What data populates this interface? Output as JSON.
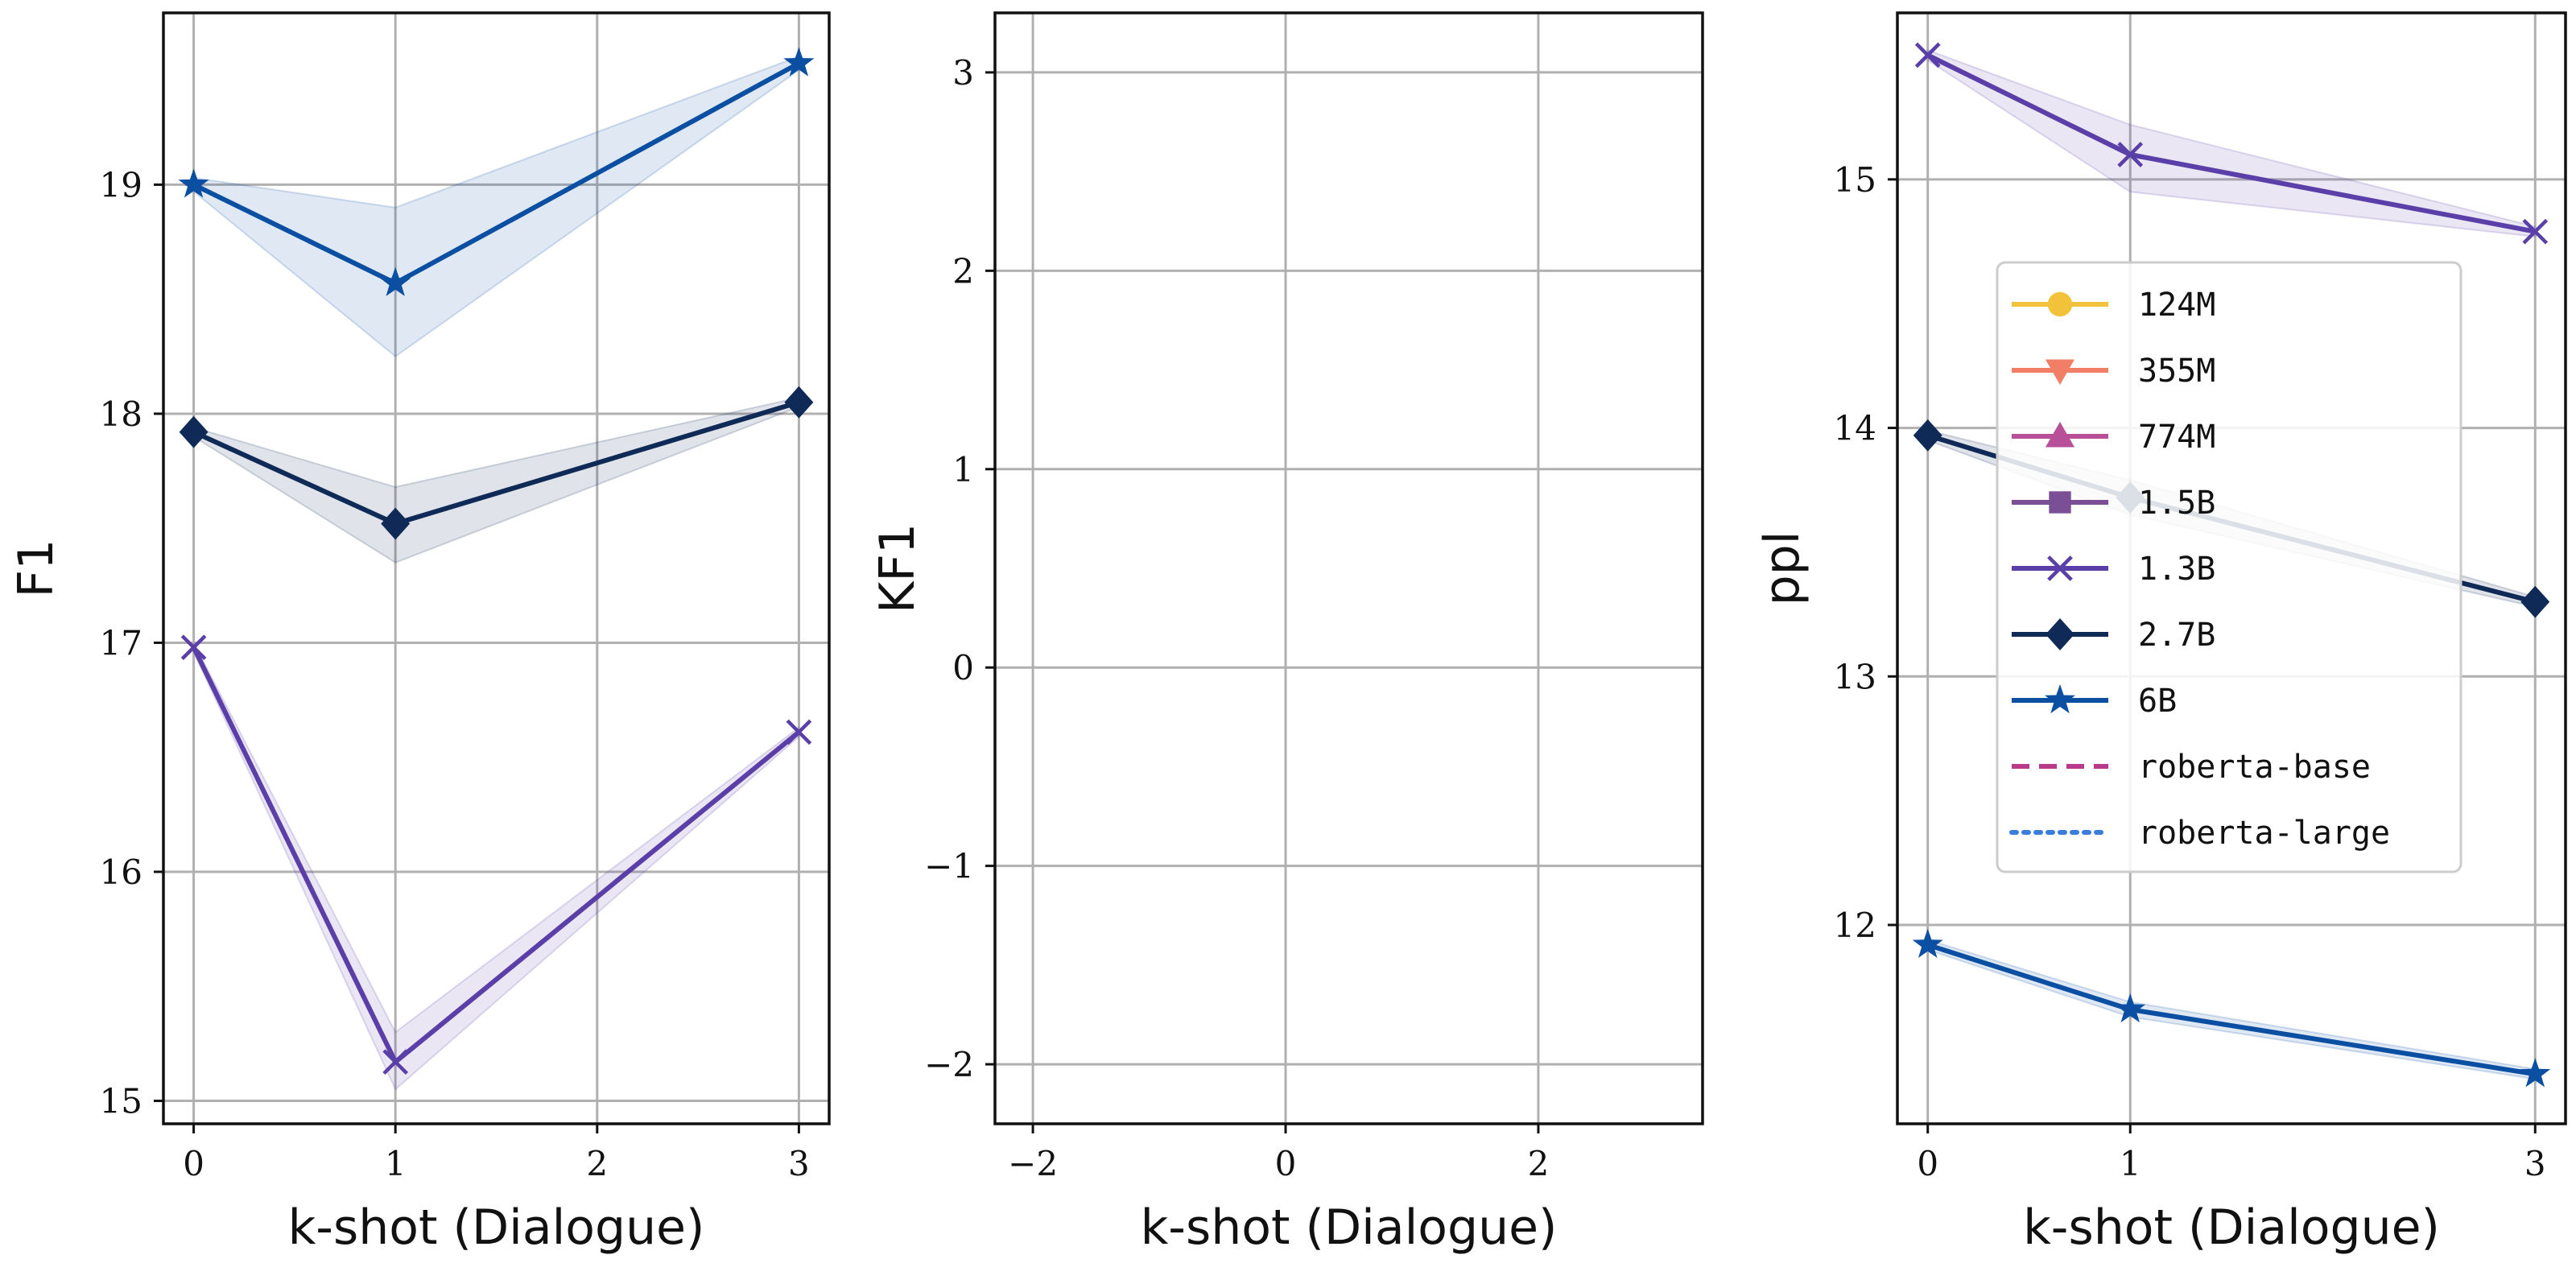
{
  "chart_data": [
    {
      "type": "line",
      "xlabel": "k-shot (Dialogue)",
      "ylabel": "F1",
      "xlim": [
        -0.15,
        3.15
      ],
      "ylim": [
        14.9,
        19.75
      ],
      "xticks": [
        0,
        1,
        2,
        3
      ],
      "yticks": [
        15,
        16,
        17,
        18,
        19
      ],
      "grid": true,
      "series": [
        {
          "name": "6B",
          "marker": "star",
          "color": "#0b4fa3",
          "x": [
            0,
            1,
            3
          ],
          "y": [
            19.0,
            18.57,
            19.53
          ],
          "band_low": [
            18.97,
            18.25,
            19.5
          ],
          "band_high": [
            19.03,
            18.9,
            19.56
          ]
        },
        {
          "name": "2.7B",
          "marker": "diamond",
          "color": "#0f2a56",
          "x": [
            0,
            1,
            3
          ],
          "y": [
            17.92,
            17.52,
            18.05
          ],
          "band_low": [
            17.9,
            17.35,
            18.03
          ],
          "band_high": [
            17.94,
            17.68,
            18.07
          ]
        },
        {
          "name": "1.3B",
          "marker": "x",
          "color": "#5b3fa8",
          "x": [
            0,
            1,
            3
          ],
          "y": [
            16.98,
            15.17,
            16.61
          ],
          "band_low": [
            16.96,
            15.05,
            16.59
          ],
          "band_high": [
            17.0,
            15.3,
            16.63
          ]
        }
      ]
    },
    {
      "type": "line",
      "xlabel": "k-shot (Dialogue)",
      "ylabel": "KF1",
      "xlim": [
        -2.3,
        3.3
      ],
      "ylim": [
        -2.3,
        3.3
      ],
      "xticks": [
        -2,
        0,
        2
      ],
      "yticks": [
        -2,
        -1,
        0,
        1,
        2,
        3
      ],
      "grid": true,
      "series": []
    },
    {
      "type": "line",
      "xlabel": "k-shot (Dialogue)",
      "ylabel": "ppl",
      "xlim": [
        -0.15,
        3.15
      ],
      "ylim": [
        11.2,
        15.67
      ],
      "xticks": [
        0,
        1,
        3
      ],
      "yticks": [
        12,
        13,
        14,
        15
      ],
      "grid": true,
      "legend_position": "center-right",
      "series": [
        {
          "name": "1.3B",
          "marker": "x",
          "color": "#5b3fa8",
          "x": [
            0,
            1,
            3
          ],
          "y": [
            15.5,
            15.1,
            14.79
          ],
          "band_low": [
            15.48,
            14.95,
            14.77
          ],
          "band_high": [
            15.52,
            15.22,
            14.81
          ]
        },
        {
          "name": "2.7B",
          "marker": "diamond",
          "color": "#0f2a56",
          "x": [
            0,
            1,
            3
          ],
          "y": [
            13.97,
            13.72,
            13.3
          ],
          "band_low": [
            13.95,
            13.65,
            13.28
          ],
          "band_high": [
            13.99,
            13.79,
            13.32
          ]
        },
        {
          "name": "6B",
          "marker": "star",
          "color": "#0b4fa3",
          "x": [
            0,
            1,
            3
          ],
          "y": [
            11.92,
            11.66,
            11.4
          ],
          "band_low": [
            11.9,
            11.63,
            11.38
          ],
          "band_high": [
            11.94,
            11.69,
            11.42
          ]
        }
      ]
    }
  ],
  "legend": [
    {
      "label": "124M",
      "color": "#f2c23b",
      "marker": "circle",
      "linestyle": "solid"
    },
    {
      "label": "355M",
      "color": "#f07f65",
      "marker": "triangle-down",
      "linestyle": "solid"
    },
    {
      "label": "774M",
      "color": "#b84f99",
      "marker": "triangle-up",
      "linestyle": "solid"
    },
    {
      "label": "1.5B",
      "color": "#7b4f96",
      "marker": "square",
      "linestyle": "solid"
    },
    {
      "label": "1.3B",
      "color": "#5b3fa8",
      "marker": "x",
      "linestyle": "solid"
    },
    {
      "label": "2.7B",
      "color": "#0f2a56",
      "marker": "diamond",
      "linestyle": "solid"
    },
    {
      "label": "6B",
      "color": "#0b4fa3",
      "marker": "star",
      "linestyle": "solid"
    },
    {
      "label": "roberta-base",
      "color": "#b83a8a",
      "marker": "none",
      "linestyle": "dashed"
    },
    {
      "label": "roberta-large",
      "color": "#3b7ddd",
      "marker": "none",
      "linestyle": "dotted"
    }
  ]
}
